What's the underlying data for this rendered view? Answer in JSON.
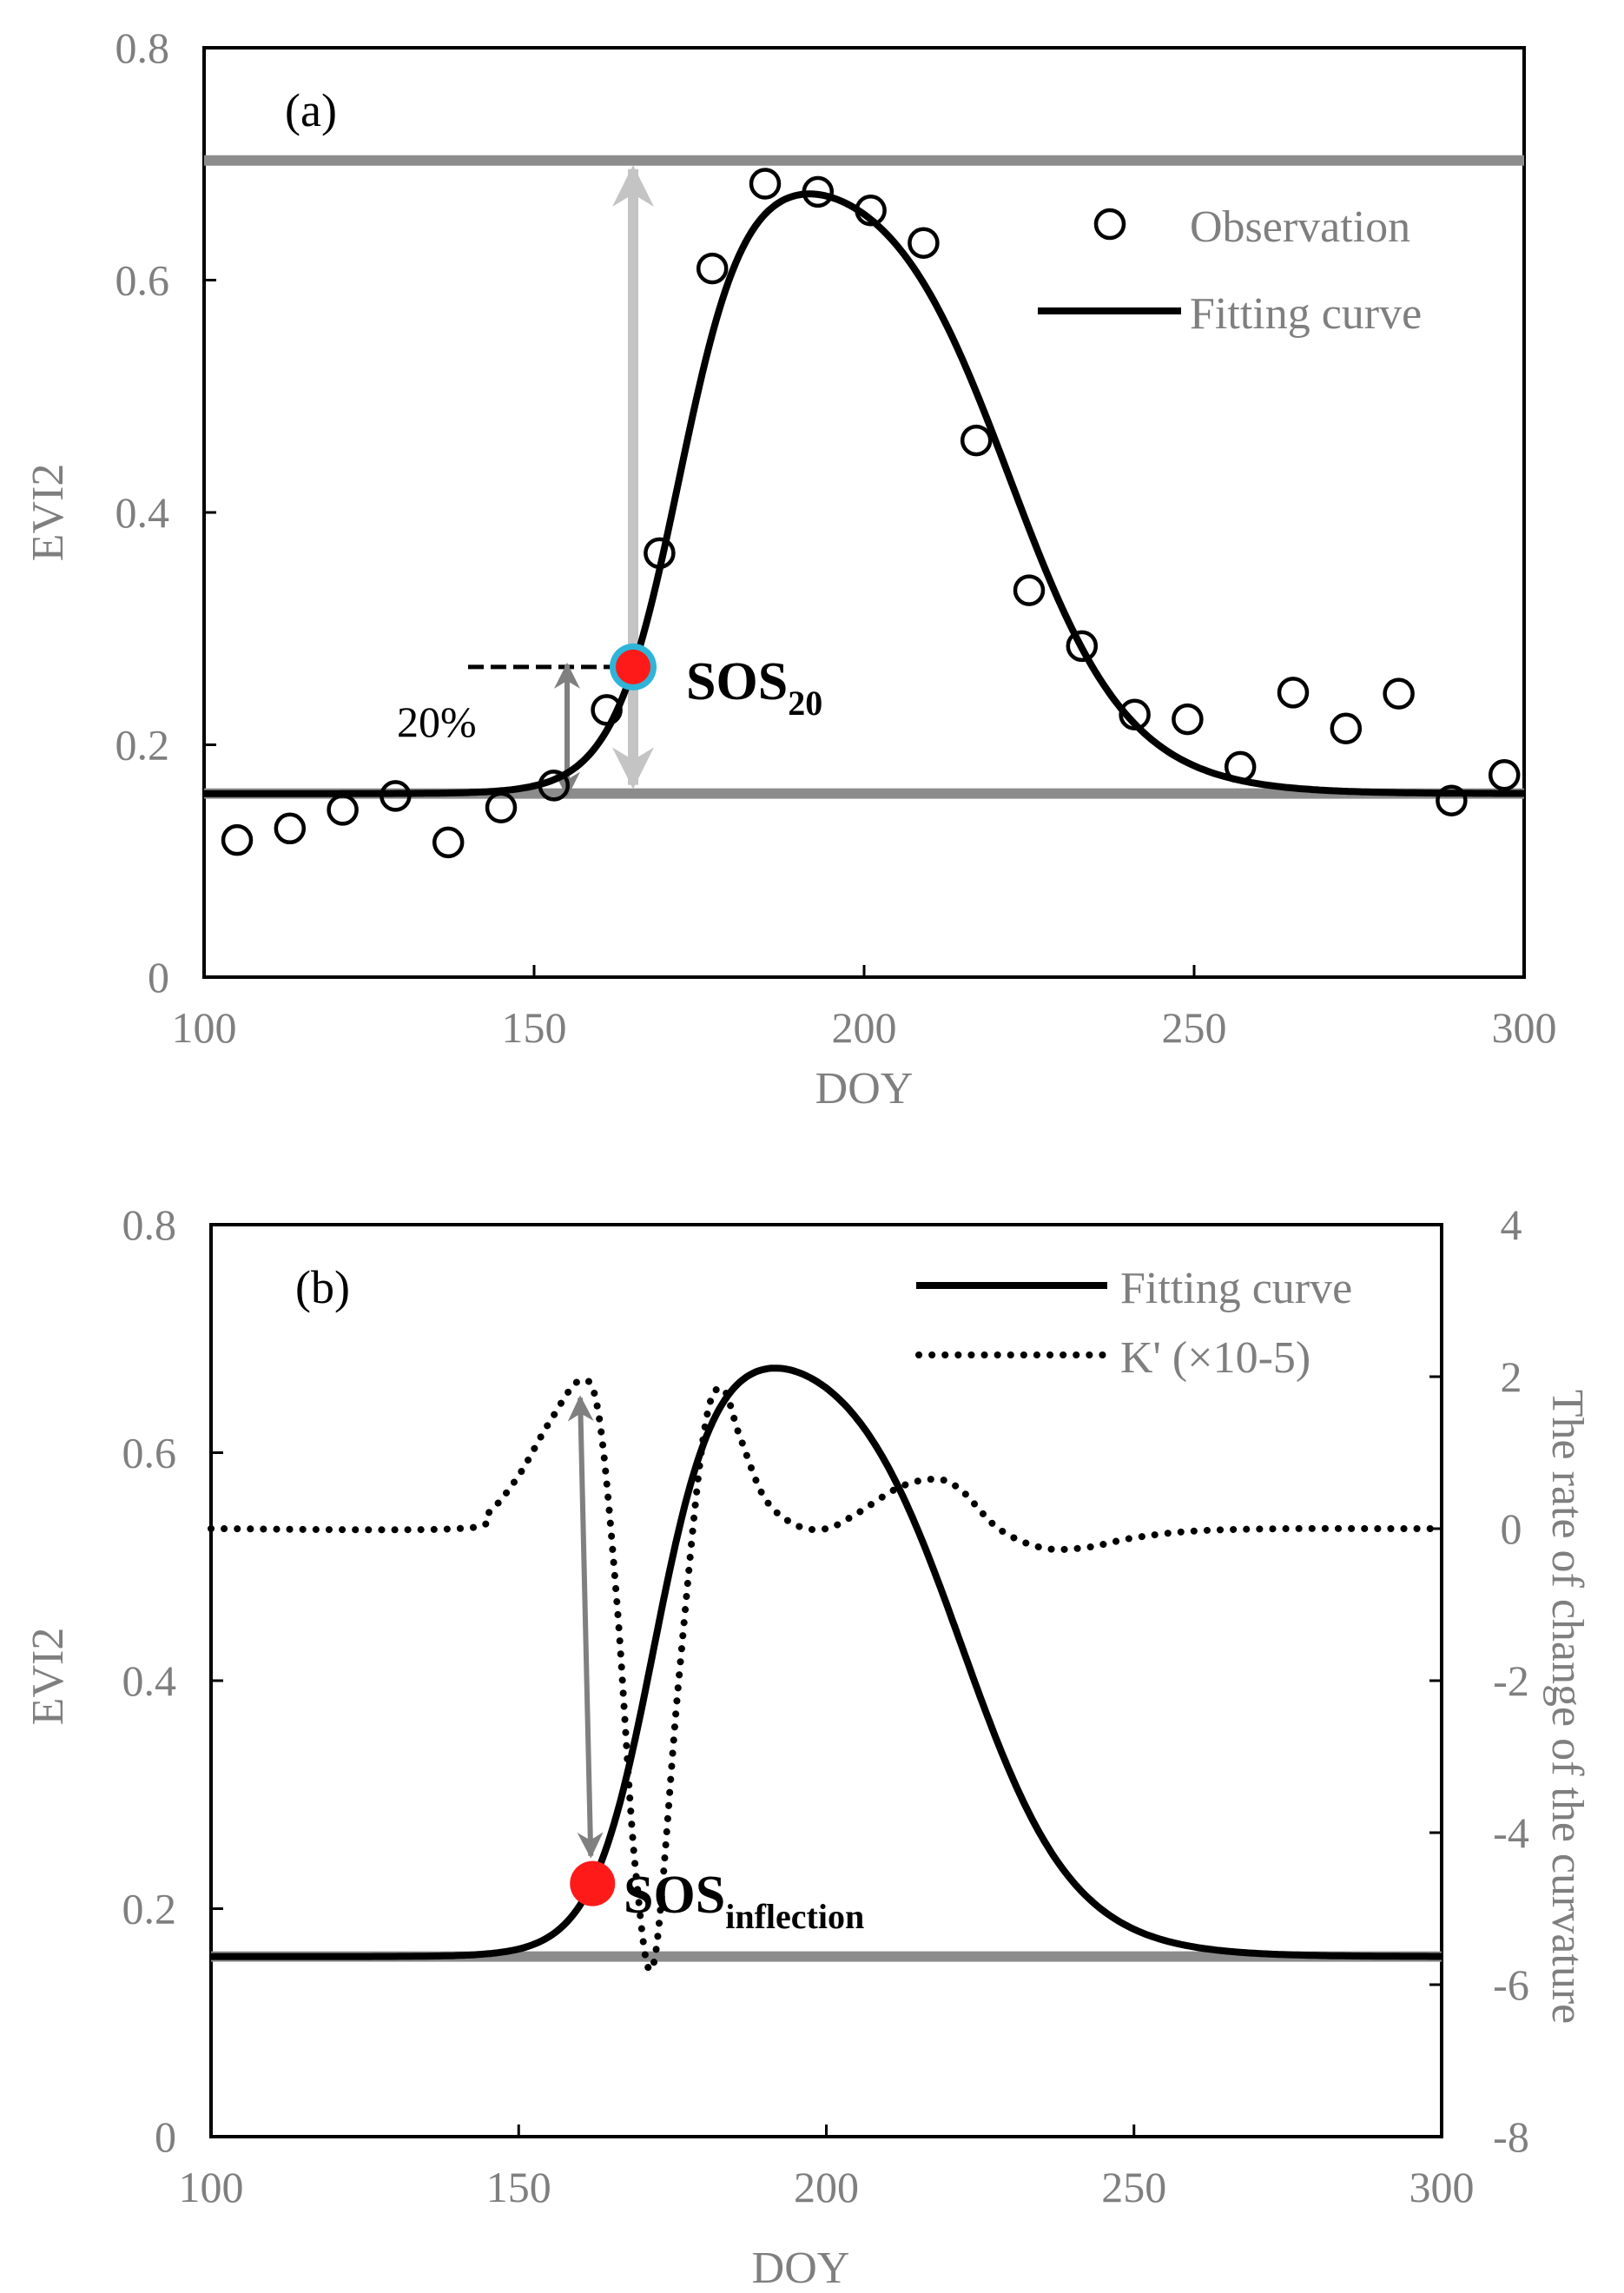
{
  "chart_data": [
    {
      "type": "scatter",
      "panel": "(a)",
      "xlabel": "DOY",
      "ylabel": "EVI2",
      "xlim": [
        100,
        300
      ],
      "ylim": [
        0,
        0.8
      ],
      "x_ticks": [
        "100",
        "150",
        "200",
        "250",
        "300"
      ],
      "y_ticks": [
        "0",
        "0.2",
        "0.4",
        "0.6",
        "0.8"
      ],
      "series": [
        {
          "name": "Observation",
          "marker": "open-circle",
          "color": "#000000",
          "x": [
            105,
            113,
            121,
            129,
            137,
            145,
            153,
            161,
            169,
            177,
            185,
            193,
            201,
            209,
            217,
            225,
            233,
            241,
            249,
            257,
            265,
            273,
            281,
            289,
            297
          ],
          "y": [
            0.118,
            0.128,
            0.144,
            0.156,
            0.116,
            0.146,
            0.165,
            0.23,
            0.365,
            0.61,
            0.683,
            0.676,
            0.66,
            0.632,
            0.462,
            0.333,
            0.285,
            0.226,
            0.222,
            0.181,
            0.245,
            0.214,
            0.244,
            0.152,
            0.174
          ]
        },
        {
          "name": "Fitting curve",
          "type": "line",
          "color": "#000000",
          "model": {
            "base": 0.158,
            "amplitude": 0.545,
            "rise_mid": 172,
            "rise_rate": 0.2,
            "fall_mid": 222,
            "fall_rate": 0.11
          }
        }
      ],
      "reference_lines": [
        {
          "y": 0.703,
          "color": "#8c8c8c"
        },
        {
          "y": 0.158,
          "color": "#8c8c8c"
        }
      ],
      "annotations": {
        "sos_label": "SOS",
        "sos_subscript": "20",
        "sos_point": {
          "x": 165,
          "y": 0.267
        },
        "percent_label": "20%"
      }
    },
    {
      "type": "line",
      "panel": "(b)",
      "xlabel": "DOY",
      "ylabel": "EVI2",
      "y2label": "The rate of change of the curvature",
      "xlim": [
        100,
        300
      ],
      "ylim": [
        0,
        0.8
      ],
      "y2lim": [
        -8,
        4
      ],
      "x_ticks": [
        "100",
        "150",
        "200",
        "250",
        "300"
      ],
      "y_ticks": [
        "0",
        "0.2",
        "0.4",
        "0.6",
        "0.8"
      ],
      "y2_ticks": [
        "-8",
        "-6",
        "-4",
        "-2",
        "0",
        "2",
        "4"
      ],
      "series": [
        {
          "name": "Fitting curve",
          "style": "solid",
          "color": "#000000",
          "axis": "left"
        },
        {
          "name": "K' (×10-5)",
          "style": "dotted",
          "color": "#000000",
          "axis": "right",
          "x": [
            100,
            140,
            145,
            150,
            155,
            160,
            163,
            166,
            169,
            172,
            176,
            180,
            183,
            186,
            190,
            195,
            200,
            205,
            212,
            218,
            222,
            228,
            235,
            242,
            250,
            260,
            275,
            290,
            300
          ],
          "y": [
            0,
            0,
            0.2,
            0.7,
            1.4,
            1.95,
            1.5,
            -1.0,
            -4.5,
            -5.7,
            -2.0,
            1.2,
            1.85,
            1.2,
            0.4,
            0.05,
            0.0,
            0.2,
            0.55,
            0.65,
            0.5,
            0.0,
            -0.25,
            -0.25,
            -0.12,
            -0.03,
            0,
            0,
            0
          ]
        }
      ],
      "reference_lines": [
        {
          "y": 0.158,
          "color": "#8c8c8c"
        }
      ],
      "annotations": {
        "sos_label": "SOS",
        "sos_subscript": "inflection",
        "sos_point": {
          "x": 162,
          "y": 0.222
        },
        "arrow_from": {
          "x": 160,
          "y2": 1.95
        }
      }
    }
  ]
}
